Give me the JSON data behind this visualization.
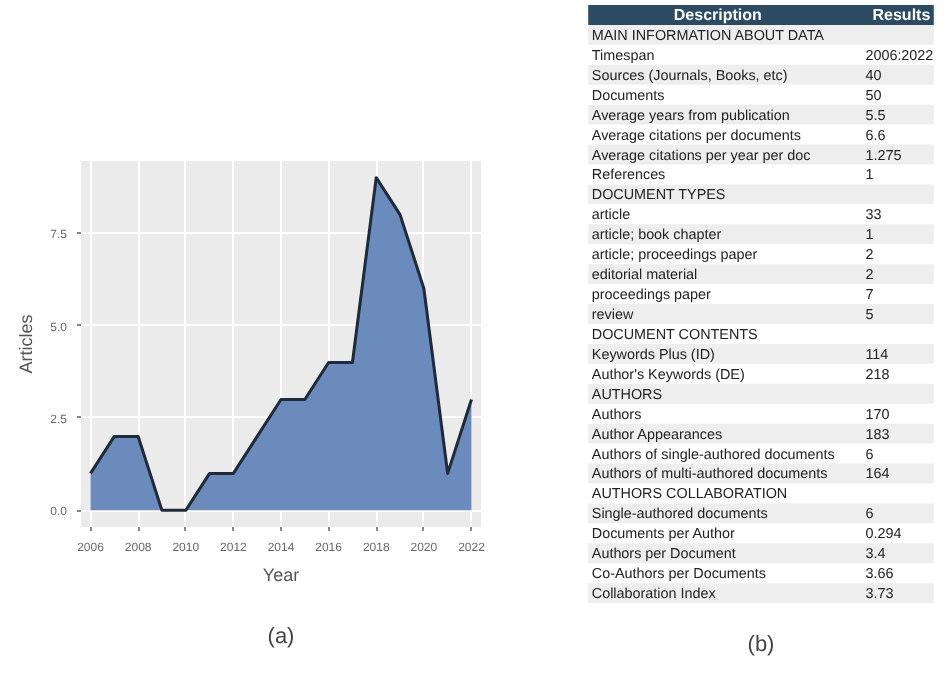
{
  "chart_data": [
    {
      "type": "area",
      "xlabel": "Year",
      "ylabel": "Articles",
      "x": [
        2006,
        2007,
        2008,
        2009,
        2010,
        2011,
        2012,
        2013,
        2014,
        2015,
        2016,
        2017,
        2018,
        2019,
        2020,
        2021,
        2022
      ],
      "values": [
        1,
        2,
        2,
        0,
        0,
        1,
        1,
        2,
        3,
        3,
        4,
        4,
        9,
        8,
        6,
        1,
        3
      ],
      "color": "#6a8bbb",
      "xlim": [
        2005.6,
        2022.4
      ],
      "ylim": [
        -0.45,
        9.45
      ],
      "xticks": [
        2006,
        2008,
        2010,
        2012,
        2014,
        2016,
        2018,
        2020,
        2022
      ],
      "yticks": [
        {
          "value": 0,
          "label": "0.0"
        },
        {
          "value": 2.5,
          "label": "2.5"
        },
        {
          "value": 5,
          "label": "5.0"
        },
        {
          "value": 7.5,
          "label": "7.5"
        }
      ],
      "grid": true,
      "annotations": [
        "(a)"
      ]
    },
    {
      "type": "other",
      "annotations": [
        "Description",
        "Results",
        "(b)"
      ],
      "categories": [
        "MAIN INFORMATION ABOUT DATA",
        "Timespan",
        "Sources (Journals, Books, etc)",
        "Documents",
        "Average years from publication",
        "Average citations per documents",
        "Average citations per year per doc",
        "References",
        "DOCUMENT TYPES",
        "article",
        "article; book chapter",
        "article; proceedings paper",
        "editorial material",
        "proceedings paper",
        "review",
        "DOCUMENT CONTENTS",
        "Keywords Plus (ID)",
        "Author's Keywords (DE)",
        "AUTHORS",
        "Authors",
        "Author Appearances",
        "Authors of single-authored documents",
        "Authors of multi-authored documents",
        "AUTHORS COLLABORATION",
        "Single-authored documents",
        "Documents per Author",
        "Authors per Document",
        "Co-Authors per Documents",
        "Collaboration Index"
      ],
      "value_labels": [
        null,
        "2006:2022",
        "40",
        "50",
        "5.5",
        "6.6",
        "1.275",
        "1",
        null,
        "33",
        "1",
        "2",
        "2",
        "7",
        "5",
        null,
        "114",
        "218",
        null,
        "170",
        "183",
        "6",
        "164",
        null,
        "6",
        "0.294",
        "3.4",
        "3.66",
        "3.73"
      ]
    }
  ]
}
